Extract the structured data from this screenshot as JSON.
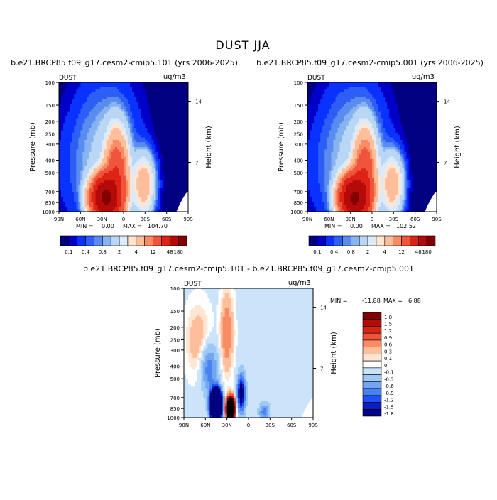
{
  "figure": {
    "title": "DUST JJA"
  },
  "chart_data": [
    {
      "type": "heatmap",
      "title": "b.e21.BRCP85.f09_g17.cesm2-cmip5.101 (yrs 2006-2025)",
      "field_label": "DUST",
      "units": "ug/m3",
      "xlabel": "",
      "ylabel": "Pressure (mb)",
      "right_axis_label": "Height (km)",
      "x_ticks": [
        "90N",
        "60N",
        "30N",
        "0",
        "30S",
        "60S",
        "90S"
      ],
      "y_ticks": [
        "100",
        "150",
        "200",
        "250",
        "300",
        "400",
        "500",
        "700",
        "850",
        "1000"
      ],
      "height_ticks": [
        "14",
        "7"
      ],
      "ylim": [
        1000,
        100
      ],
      "y_scale": "log",
      "min_label": "MIN =",
      "min_value": "0.00",
      "max_label": "MAX =",
      "max_value": "104.70",
      "colorbar_ticks": [
        "0.1",
        "0.4",
        "0.8",
        "2",
        "4",
        "12",
        "48",
        "180"
      ],
      "colorbar_orientation": "horizontal",
      "peak": {
        "lat": 25,
        "pressure": 800,
        "value": 104.7
      }
    },
    {
      "type": "heatmap",
      "title": "b.e21.BRCP85.f09_g17.cesm2-cmip5.001 (yrs 2006-2025)",
      "field_label": "DUST",
      "units": "ug/m3",
      "xlabel": "",
      "ylabel": "Pressure (mb)",
      "right_axis_label": "Height (km)",
      "x_ticks": [
        "90N",
        "60N",
        "30N",
        "0",
        "30S",
        "60S",
        "90S"
      ],
      "y_ticks": [
        "100",
        "150",
        "200",
        "250",
        "300",
        "400",
        "500",
        "700",
        "850",
        "1000"
      ],
      "height_ticks": [
        "14",
        "7"
      ],
      "ylim": [
        1000,
        100
      ],
      "y_scale": "log",
      "min_label": "MIN =",
      "min_value": "0.00",
      "max_label": "MAX =",
      "max_value": "102.52",
      "colorbar_ticks": [
        "0.1",
        "0.4",
        "0.8",
        "2",
        "4",
        "12",
        "48",
        "180"
      ],
      "colorbar_orientation": "horizontal",
      "peak": {
        "lat": 25,
        "pressure": 800,
        "value": 102.52
      }
    },
    {
      "type": "heatmap",
      "title": "b.e21.BRCP85.f09_g17.cesm2-cmip5.101 - b.e21.BRCP85.f09_g17.cesm2-cmip5.001",
      "field_label": "DUST",
      "units": "ug/m3",
      "xlabel": "",
      "ylabel": "Pressure (mb)",
      "right_axis_label": "Height (km)",
      "x_ticks": [
        "90N",
        "60N",
        "30N",
        "0",
        "30S",
        "60S",
        "90S"
      ],
      "y_ticks": [
        "100",
        "150",
        "200",
        "250",
        "300",
        "400",
        "500",
        "700",
        "850",
        "1000"
      ],
      "height_ticks": [
        "14",
        "7"
      ],
      "ylim": [
        1000,
        100
      ],
      "y_scale": "log",
      "min_label": "MIN =",
      "min_value": "-11.88",
      "max_label": "MAX =",
      "max_value": "6.88",
      "colorbar_ticks": [
        "1.8",
        "1.5",
        "1.2",
        "0.9",
        "0.6",
        "0.3",
        "0.1",
        "0",
        "-0.1",
        "-0.3",
        "-0.6",
        "-0.9",
        "-1.2",
        "-1.5",
        "-1.8"
      ],
      "colorbar_orientation": "vertical",
      "positive_peak": {
        "lat": 25,
        "pressure": 850,
        "value": 6.88
      },
      "negative_peak": {
        "lat": 45,
        "pressure": 800,
        "value": -11.88
      }
    }
  ],
  "colors": {
    "sequential": [
      "#000080",
      "#0000c8",
      "#0a32ff",
      "#2d5ff5",
      "#5a8cf0",
      "#87b4f0",
      "#b9d7f5",
      "#dcebfa",
      "#ffe6d2",
      "#ffbe9b",
      "#fa8c64",
      "#f0553c",
      "#dc2314",
      "#b40a0a",
      "#820000"
    ],
    "diverging": [
      "#820000",
      "#b40a0a",
      "#dc2314",
      "#f0553c",
      "#fa8c64",
      "#ffbe9b",
      "#ffe6d2",
      "#ffffff",
      "#cce4fa",
      "#9ec8f5",
      "#73a5f0",
      "#4682f0",
      "#1e50ff",
      "#0a1ec8",
      "#000080"
    ]
  }
}
